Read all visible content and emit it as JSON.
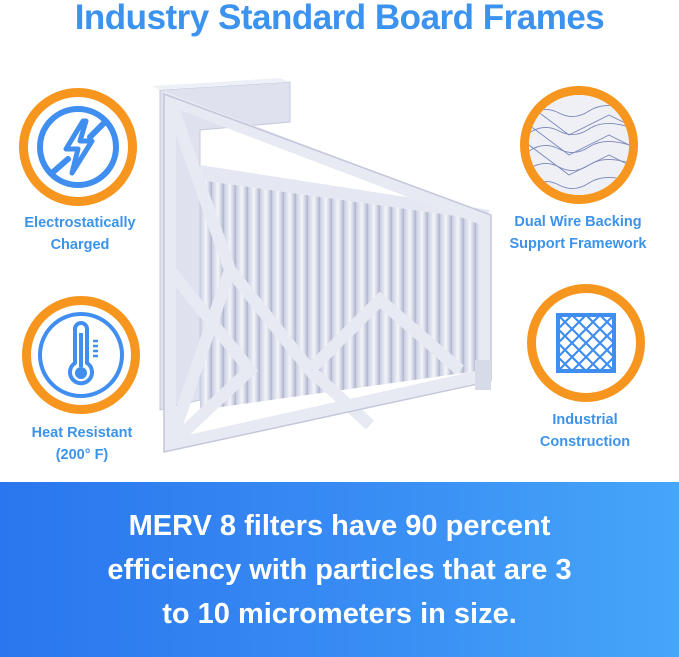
{
  "title": "Industry Standard Board Frames",
  "features": [
    {
      "label_line1": "Electrostatically",
      "label_line2": "Charged",
      "icon": "no-static-lightning-icon"
    },
    {
      "label_line1": "Heat Resistant",
      "label_line2": "(200° F)",
      "icon": "thermometer-icon"
    },
    {
      "label_line1": "Dual Wire Backing",
      "label_line2": "Support Framework",
      "icon": "wire-mesh-photo"
    },
    {
      "label_line1": "Industrial",
      "label_line2": "Construction",
      "icon": "grid-frame-icon"
    }
  ],
  "banner": {
    "line1": "MERV 8 filters have 90 percent",
    "line2": "efficiency with particles that are 3",
    "line3": "to 10 micrometers in size."
  },
  "colors": {
    "accent_blue": "#3b93ef",
    "ring_orange": "#f6961f",
    "banner_blue": "#2a76ee"
  }
}
